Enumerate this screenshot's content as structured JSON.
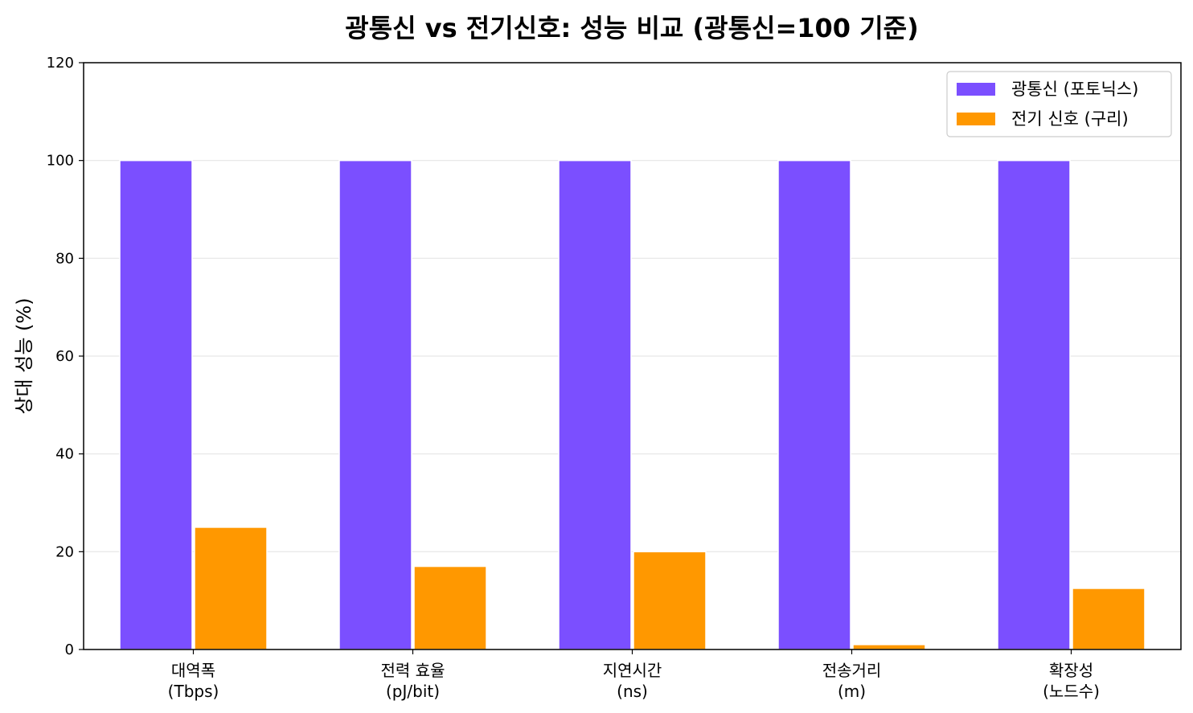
{
  "chart_data": {
    "type": "bar",
    "title": "광통신 vs 전기신호: 성능 비교 (광통신=100 기준)",
    "xlabel": "",
    "ylabel": "상대 성능 (%)",
    "ylim": [
      0,
      120
    ],
    "yticks": [
      0,
      20,
      40,
      60,
      80,
      100,
      120
    ],
    "grid": true,
    "legend_position": "top-right",
    "categories": [
      [
        "대역폭",
        "(Tbps)"
      ],
      [
        "전력 효율",
        "(pJ/bit)"
      ],
      [
        "지연시간",
        "(ns)"
      ],
      [
        "전송거리",
        "(m)"
      ],
      [
        "확장성",
        "(노드수)"
      ]
    ],
    "series": [
      {
        "name": "광통신 (포토닉스)",
        "color": "#7b4fff",
        "values": [
          100,
          100,
          100,
          100,
          100
        ]
      },
      {
        "name": "전기 신호 (구리)",
        "color": "#ff9800",
        "values": [
          25,
          17,
          20,
          1,
          12.5
        ]
      }
    ]
  }
}
